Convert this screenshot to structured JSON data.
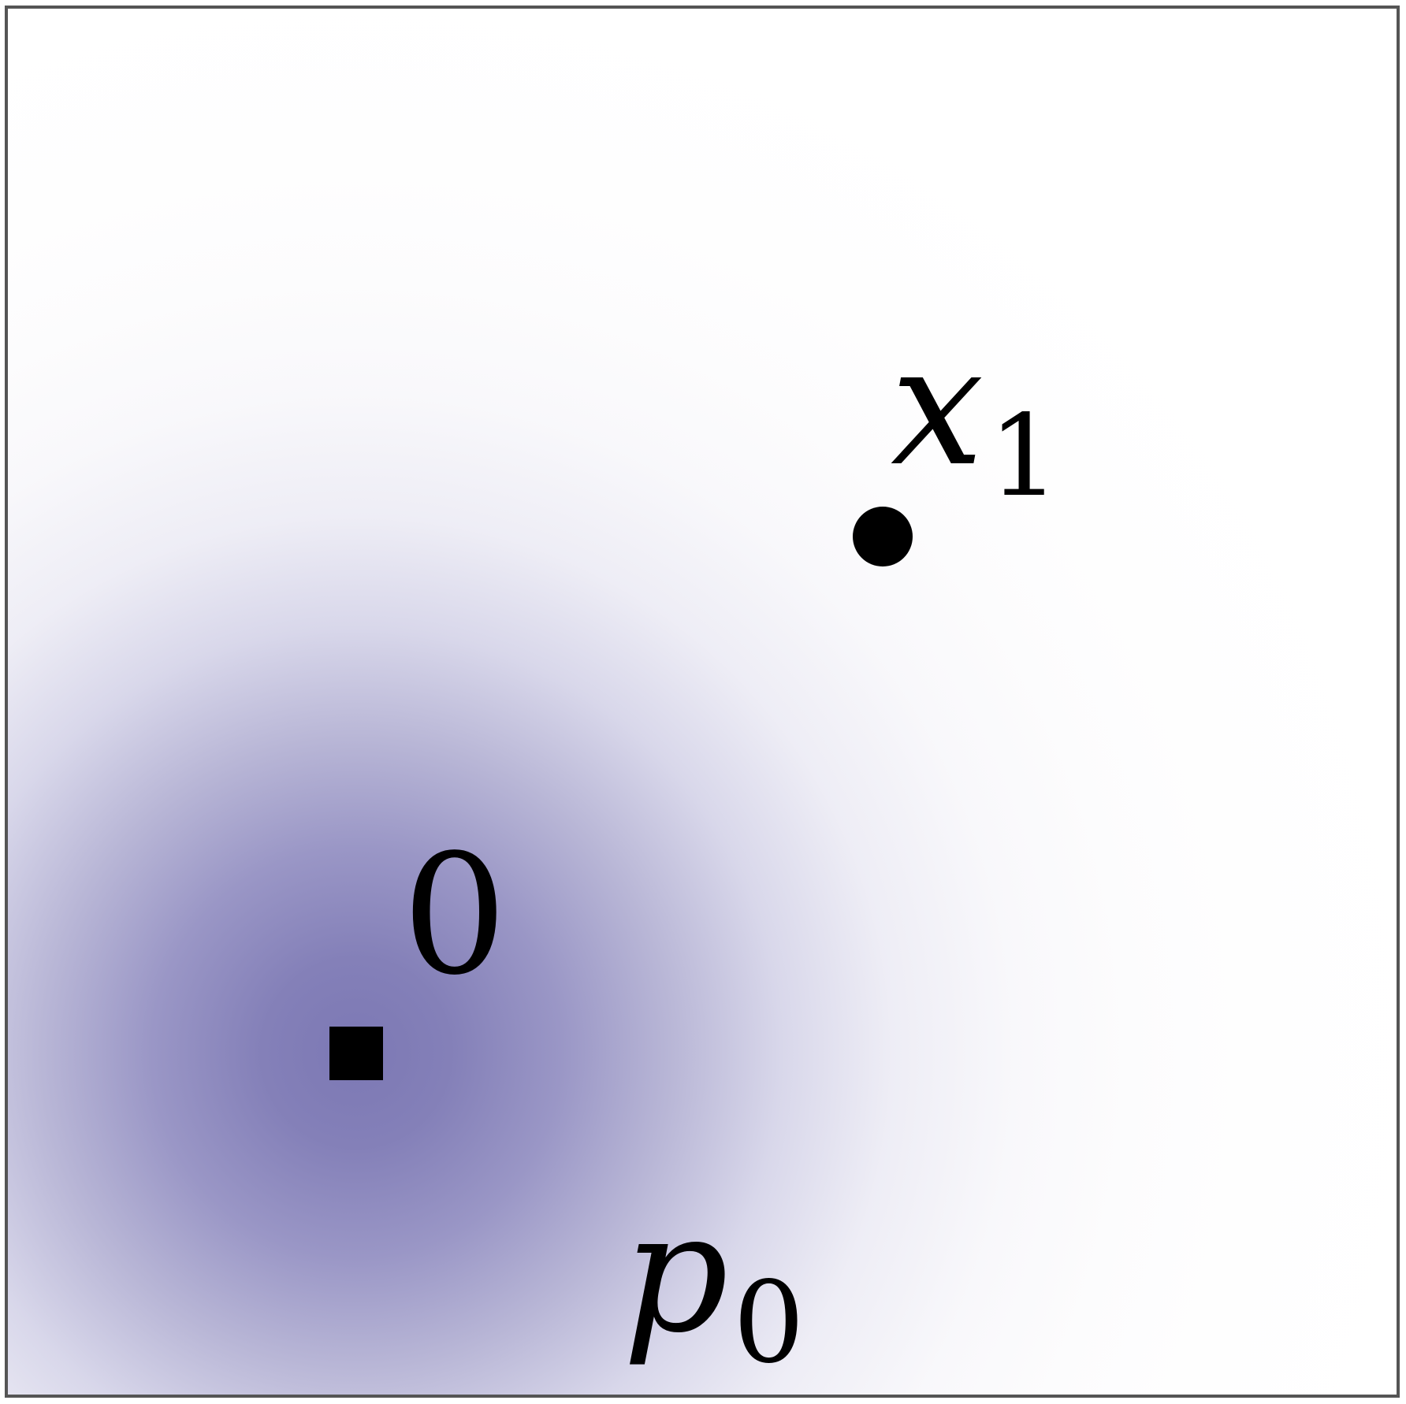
{
  "diagram": {
    "labels": {
      "origin": "0",
      "point_var": "x",
      "point_sub": "1",
      "density_var": "p",
      "density_sub": "0"
    },
    "colors": {
      "density": "#7c78b4",
      "frame": "#555555",
      "markers": "#000000"
    }
  }
}
